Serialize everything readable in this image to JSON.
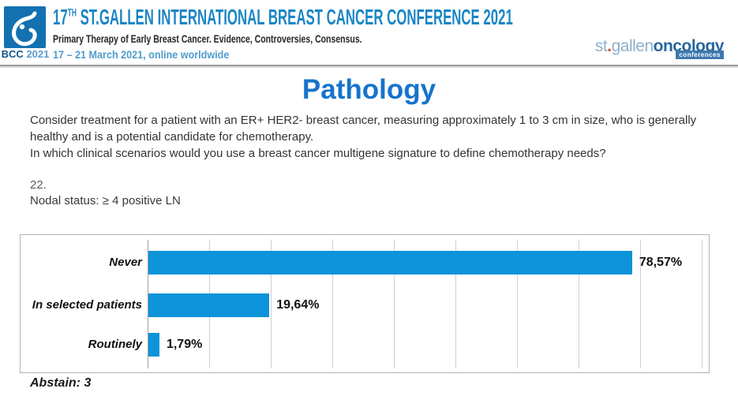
{
  "header": {
    "logo": {
      "text": "BCC",
      "year": "2021"
    },
    "title": {
      "num": "17",
      "sup": "TH",
      "rest": " ST.GALLEN INTERNATIONAL BREAST CANCER CONFERENCE 2021"
    },
    "subtitle": "Primary Therapy of Early Breast Cancer. Evidence, Controversies, Consensus.",
    "dates": "17 – 21 March 2021, online worldwide",
    "brand": {
      "part1": "st",
      "dot": ".",
      "part2": "gallen",
      "part3": "oncology",
      "badge": "conferences"
    }
  },
  "main": {
    "page_title": "Pathology",
    "question_paragraph": "Consider treatment for a patient with an ER+ HER2- breast cancer, measuring approximately 1 to 3 cm in size, who is generally healthy and is a potential candidate for chemotherapy.",
    "question_line": "In which clinical scenarios would you use a breast cancer multigene signature to define chemotherapy needs?",
    "question_number": "22.",
    "question_sub": "Nodal status: ≥ 4 positive LN",
    "abstain_label": "Abstain: 3"
  },
  "chart_data": {
    "type": "bar",
    "orientation": "horizontal",
    "title": "",
    "categories": [
      "Never",
      "In selected patients",
      "Routinely"
    ],
    "values": [
      78.57,
      19.64,
      1.79
    ],
    "value_labels": [
      "78,57%",
      "19,64%",
      "1,79%"
    ],
    "xlim": [
      0,
      90
    ],
    "gridline_step": 10,
    "grid": true,
    "legend": false,
    "bar_color": "#0d93da",
    "abstain_count": 3
  },
  "colors": {
    "header_title": "#1b86c4",
    "page_title": "#1674cb",
    "bar": "#0d93da",
    "dates": "#4e9ccb",
    "logo_box": "#1371b0"
  }
}
